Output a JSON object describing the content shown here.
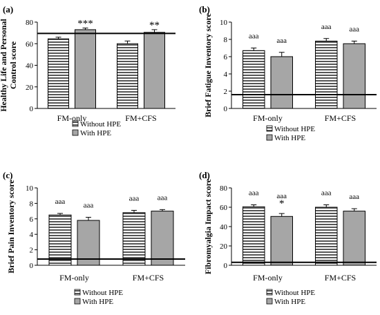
{
  "colors": {
    "without_hpe": "#555555",
    "with_hpe": "#a6a6a6",
    "stripe": "#ffffff",
    "outline": "#000000"
  },
  "chart_data": [
    {
      "panel": "(a)",
      "type": "bar",
      "ylabel_lines": [
        "Healthy Life and Personal",
        "Control score"
      ],
      "ylim": [
        0,
        80
      ],
      "yticks": [
        "0",
        "20",
        "40",
        "60",
        "80"
      ],
      "categories": [
        "FM-only",
        "FM+CFS"
      ],
      "series": [
        {
          "name": "Without HPE",
          "values": [
            64.5,
            60.0
          ],
          "errors": [
            1.5,
            2.5
          ],
          "annotations": [
            "",
            ""
          ]
        },
        {
          "name": "With HPE",
          "values": [
            73.0,
            70.5
          ],
          "errors": [
            1.5,
            2.5
          ],
          "annotations": [
            "***",
            "**"
          ]
        }
      ],
      "reference_line": 69.5,
      "legend": [
        "Without HPE",
        "With HPE"
      ],
      "legend_position": "bottom",
      "grid": false
    },
    {
      "panel": "(b)",
      "type": "bar",
      "ylabel_lines": [
        "Brief Fatigue Inventory score"
      ],
      "ylim": [
        0,
        10
      ],
      "yticks": [
        "0",
        "2",
        "4",
        "6",
        "8",
        "10"
      ],
      "categories": [
        "FM-only",
        "FM+CFS"
      ],
      "series": [
        {
          "name": "Without HPE",
          "values": [
            6.7,
            7.8
          ],
          "errors": [
            0.3,
            0.3
          ],
          "annotations": [
            "aaa",
            "aaa"
          ]
        },
        {
          "name": "With HPE",
          "values": [
            6.0,
            7.5
          ],
          "errors": [
            0.5,
            0.3
          ],
          "annotations": [
            "aaa",
            "aaa"
          ]
        }
      ],
      "reference_line": 1.6,
      "legend": [
        "Without HPE",
        "With HPE"
      ],
      "legend_position": "bottom",
      "grid": false
    },
    {
      "panel": "(c)",
      "type": "bar",
      "ylabel_lines": [
        "Brief Pain Inventory score"
      ],
      "ylim": [
        0,
        10
      ],
      "yticks": [
        "0",
        "2",
        "4",
        "6",
        "8",
        "10"
      ],
      "categories": [
        "FM-only",
        "FM+CFS"
      ],
      "series": [
        {
          "name": "Without HPE",
          "values": [
            6.5,
            6.8
          ],
          "errors": [
            0.2,
            0.3
          ],
          "annotations": [
            "aaa",
            "aaa"
          ]
        },
        {
          "name": "With HPE",
          "values": [
            5.8,
            7.0
          ],
          "errors": [
            0.4,
            0.2
          ],
          "annotations": [
            "aaa",
            "aaa"
          ]
        }
      ],
      "reference_line": 0.8,
      "legend": [
        "Without HPE",
        "With HPE"
      ],
      "legend_position": "bottom",
      "grid": false
    },
    {
      "panel": "(d)",
      "type": "bar",
      "ylabel_lines": [
        "Fibromyalgia Impact score"
      ],
      "ylim": [
        0,
        80
      ],
      "yticks": [
        "0",
        "20",
        "40",
        "60",
        "80"
      ],
      "categories": [
        "FM-only",
        "FM+CFS"
      ],
      "series": [
        {
          "name": "Without HPE",
          "values": [
            60.5,
            60.0
          ],
          "errors": [
            2.0,
            2.5
          ],
          "annotations": [
            "aaa",
            "aaa"
          ]
        },
        {
          "name": "With HPE",
          "values": [
            50.5,
            56.0
          ],
          "errors": [
            3.0,
            2.5
          ],
          "annotations": [
            "aaa *",
            "aaa"
          ]
        }
      ],
      "reference_line": 3.0,
      "legend": [
        "Without HPE",
        "With HPE"
      ],
      "legend_position": "bottom",
      "grid": false
    }
  ]
}
